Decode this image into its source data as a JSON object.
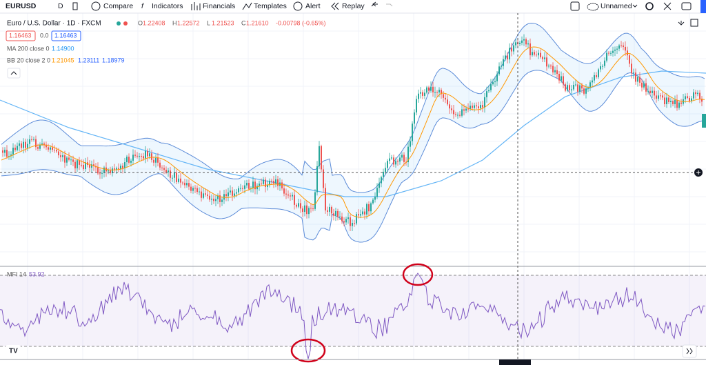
{
  "toolbar": {
    "symbol": "EURUSD",
    "interval": "D",
    "compare": "Compare",
    "indicators": "Indicators",
    "financials": "Financials",
    "templates": "Templates",
    "alert": "Alert",
    "replay": "Replay",
    "layout": "Unnamed"
  },
  "legend": {
    "title": "Euro / U.S. Dollar · 1D · FXCM",
    "ohlc": [
      {
        "label": "O",
        "value": "1.22408"
      },
      {
        "label": "H",
        "value": "1.22572"
      },
      {
        "label": "L",
        "value": "1.21523"
      },
      {
        "label": "C",
        "value": "1.21610"
      }
    ],
    "change": "-0.00798 (-0.65%)",
    "bid": "1.16463",
    "spread": "0.0",
    "ask": "1.16463",
    "ma": {
      "name": "MA 200 close 0",
      "value": "1.14900"
    },
    "bb": {
      "name": "BB 20 close 2 0",
      "basis": "1.21045",
      "upper": "1.23111",
      "lower": "1.18979"
    }
  },
  "mfi": {
    "name": "MFI 14",
    "value": "53.92"
  }
}
